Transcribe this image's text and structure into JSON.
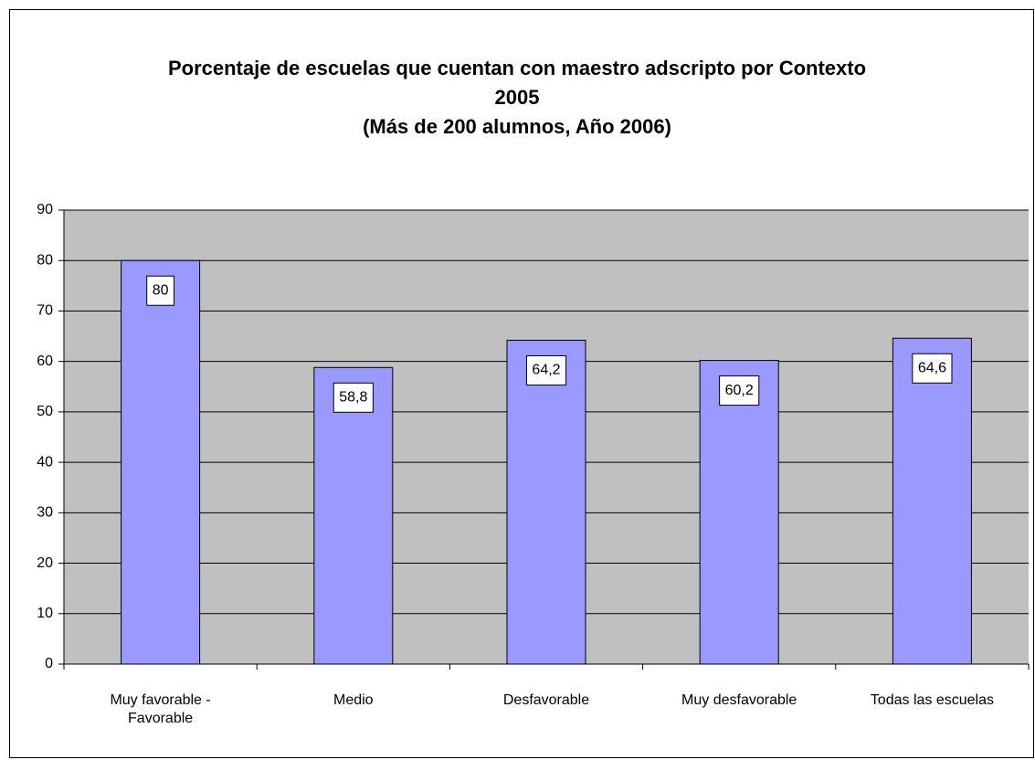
{
  "chart_data": {
    "type": "bar",
    "title": "Porcentaje de escuelas que cuentan con maestro adscripto por Contexto 2005",
    "subtitle": "(Más de 200 alumnos, Año 2006)",
    "categories": [
      "Muy favorable - Favorable",
      "Medio",
      "Desfavorable",
      "Muy desfavorable",
      "Todas las escuelas"
    ],
    "values": [
      80,
      58.8,
      64.2,
      60.2,
      64.6
    ],
    "value_labels": [
      "80",
      "58,8",
      "64,2",
      "60,2",
      "64,6"
    ],
    "color": "#9999ff",
    "ylim": [
      0,
      90
    ],
    "yticks": [
      0,
      10,
      20,
      30,
      40,
      50,
      60,
      70,
      80,
      90
    ],
    "grid": true
  }
}
